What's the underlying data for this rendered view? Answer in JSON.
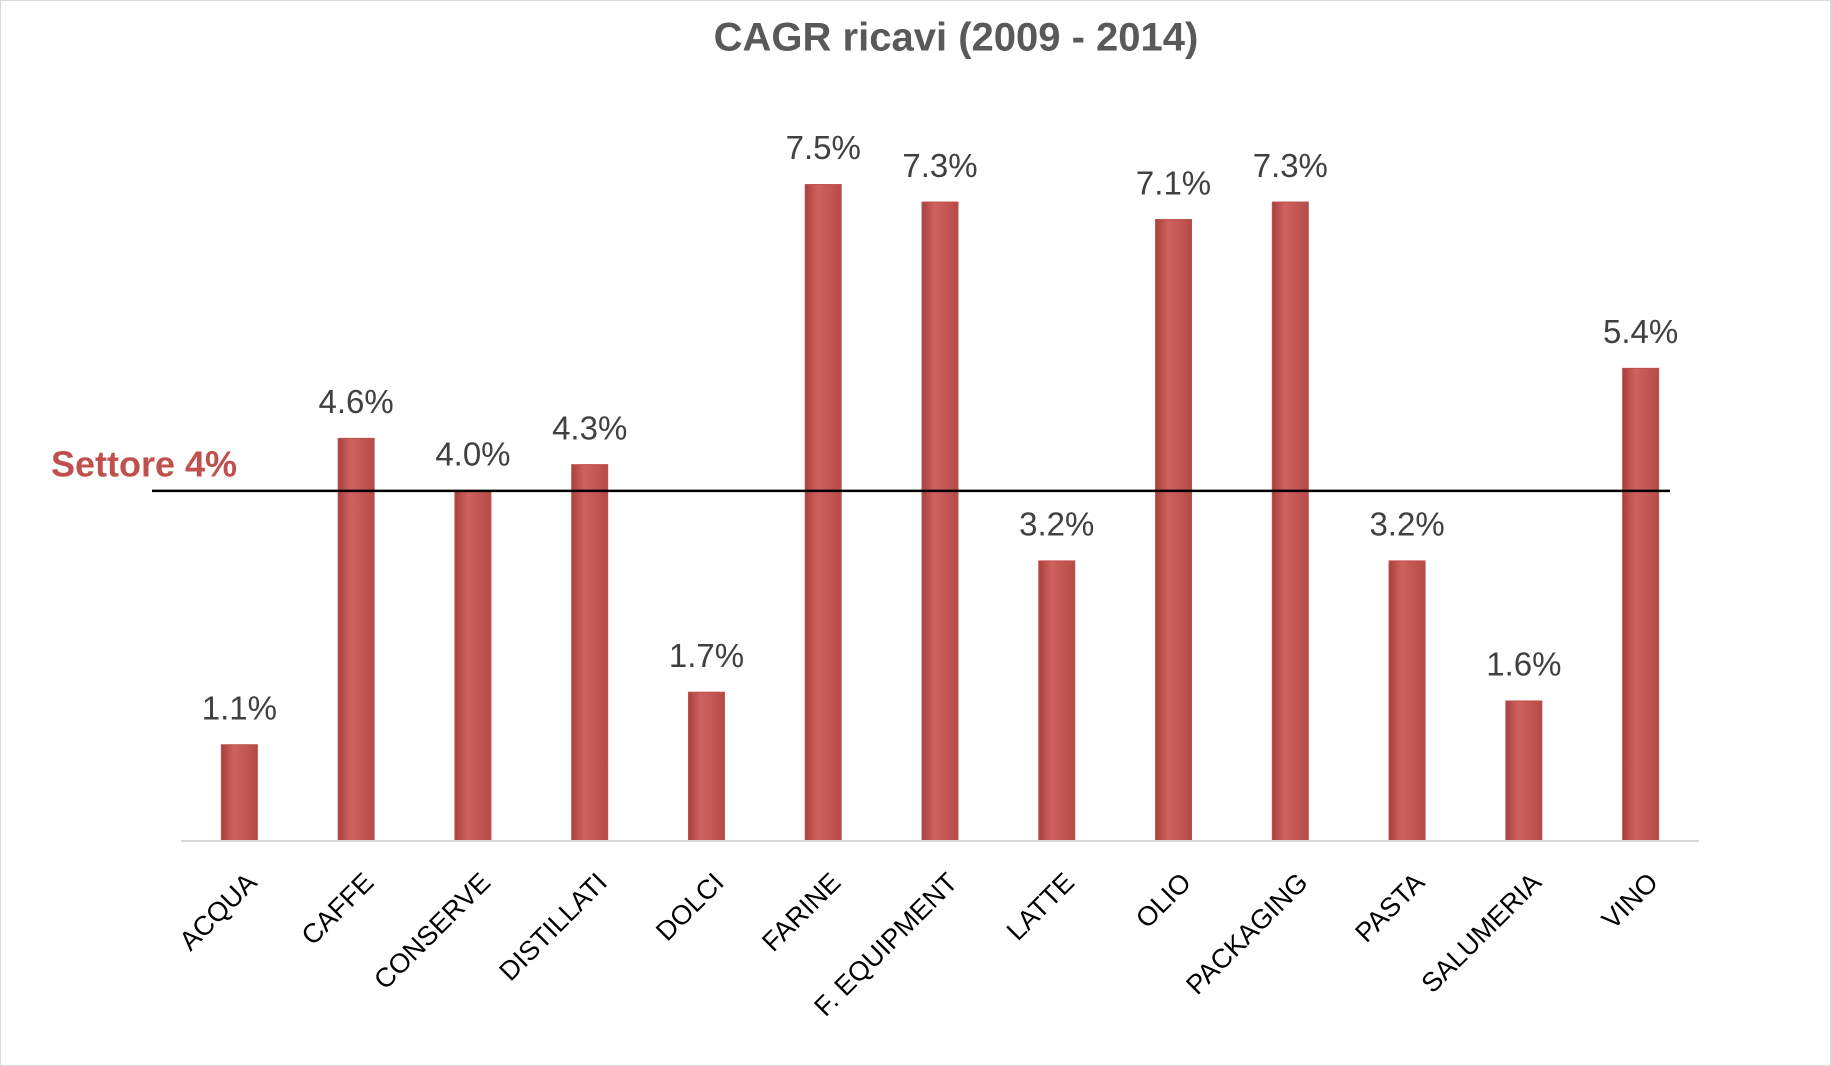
{
  "chart_data": {
    "type": "bar",
    "title": "CAGR ricavi (2009 - 2014)",
    "categories": [
      "ACQUA",
      "CAFFE",
      "CONSERVE",
      "DISTILLATI",
      "DOLCI",
      "FARINE",
      "F. EQUIPMENT",
      "LATTE",
      "OLIO",
      "PACKAGING",
      "PASTA",
      "SALUMERIA",
      "VINO"
    ],
    "values": [
      1.1,
      4.6,
      4.0,
      4.3,
      1.7,
      7.5,
      7.3,
      3.2,
      7.1,
      7.3,
      3.2,
      1.6,
      5.4
    ],
    "value_labels": [
      "1.1%",
      "4.6%",
      "4.0%",
      "4.3%",
      "1.7%",
      "7.5%",
      "7.3%",
      "3.2%",
      "7.1%",
      "7.3%",
      "3.2%",
      "1.6%",
      "5.4%"
    ],
    "color": "#c0504d",
    "ylim": [
      0,
      8.5
    ],
    "reference_line": {
      "value": 4,
      "label": "Settore 4%",
      "color": "#c0504d"
    }
  }
}
